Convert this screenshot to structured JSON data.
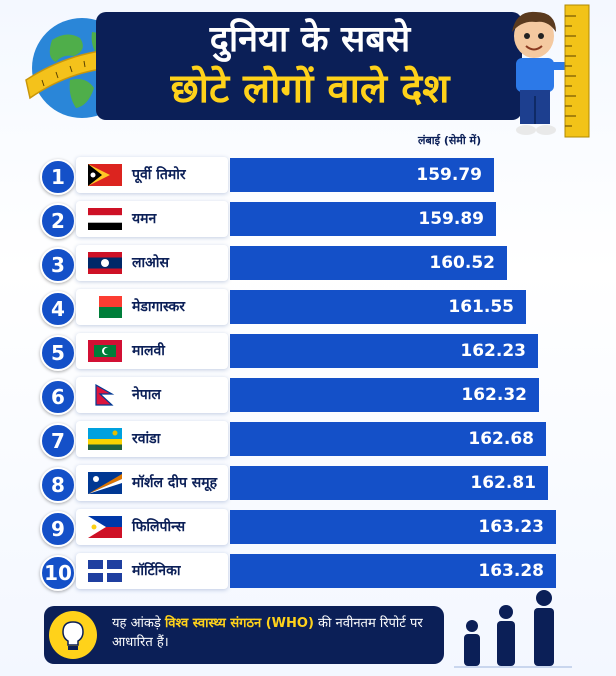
{
  "header": {
    "title_line1": "दुनिया के सबसे",
    "title_line2": "छोटे लोगों वाले देश"
  },
  "unit_label": "लंबाई (सेमी में)",
  "chart_data": {
    "type": "bar",
    "orientation": "horizontal",
    "title": "दुनिया के सबसे छोटे लोगों वाले देश",
    "ylabel": "लंबाई (सेमी में)",
    "categories": [
      "पूर्वी तिमोर",
      "यमन",
      "लाओस",
      "मेडागास्कर",
      "मालवी",
      "नेपाल",
      "रवांडा",
      "मॉर्शल दीप समूह",
      "फिलिपीन्स",
      "मॉर्टिनिका"
    ],
    "ranks": [
      "1",
      "2",
      "3",
      "4",
      "5",
      "6",
      "7",
      "8",
      "9",
      "10"
    ],
    "values": [
      159.79,
      159.89,
      160.52,
      161.55,
      162.23,
      162.32,
      162.68,
      162.81,
      163.23,
      163.28
    ],
    "labels": [
      "159.79",
      "159.89",
      "160.52",
      "161.55",
      "162.23",
      "162.32",
      "162.68",
      "162.81",
      "163.23",
      "163.28"
    ],
    "flags": [
      "east-timor-flag",
      "yemen-flag",
      "laos-flag",
      "madagascar-flag",
      "maldives-flag",
      "nepal-flag",
      "rwanda-flag",
      "marshall-islands-flag",
      "philippines-flag",
      "martinique-flag"
    ],
    "bar_color": "#1450c8"
  },
  "footer": {
    "text_before": "यह आंकड़े ",
    "text_highlight": "विश्व स्वास्थ्य संगठन (WHO)",
    "text_after": " की नवीनतम रिपोर्ट पर आधारित हैं।"
  },
  "colors": {
    "navy": "#0b1f57",
    "accent": "#ffd21a",
    "bar": "#1450c8"
  }
}
